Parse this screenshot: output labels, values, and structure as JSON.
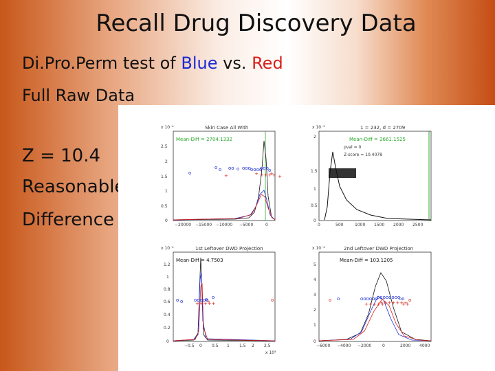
{
  "slide": {
    "title": "Recall Drug Discovery Data",
    "line1_prefix": "Di.Pro.Perm test of ",
    "line1_blue": "Blue",
    "line1_mid": " vs. ",
    "line1_red": "Red",
    "line2": "Full Raw Data",
    "line3": "Z = 10.4",
    "line4": "Reasonable",
    "line5": "Difference"
  },
  "colors": {
    "blue": "#1a2ad6",
    "red": "#d8201a",
    "green": "#2aa82a"
  },
  "plots": {
    "p1": {
      "exp": "x 10⁻⁴",
      "title": "Skin Case All With",
      "legend": "Mean-Diff = 2704.1332",
      "yticks": [
        "2.5",
        "2",
        "1.5",
        "1",
        "0.5",
        "0"
      ],
      "xticks": [
        "−20000",
        "−15000",
        "−10000",
        "−5000",
        "0"
      ]
    },
    "p2": {
      "exp": "x 10⁻³",
      "title": "1 = 232, d = 2709",
      "legend": "Mean-Diff = 2661.1525",
      "yticks": [
        "2",
        "1.5",
        "1",
        "0.5",
        "0"
      ],
      "xticks": [
        "0",
        "500",
        "1000",
        "1500",
        "2000",
        "2500"
      ],
      "note1": "pval = 0",
      "note2": "Z-score = 10.4078"
    },
    "p3": {
      "exp": "x 10⁻⁴",
      "title": "1st Leftover DWD Projection",
      "legend": "Mean-Diff = 4.7503",
      "yticks": [
        "1.2",
        "1",
        "0.8",
        "0.6",
        "0.4",
        "0.2",
        "0"
      ],
      "xticks": [
        "−0.5",
        "0",
        "0.5",
        "1",
        "1.5",
        "2",
        "2.5"
      ],
      "xexp": "x 10⁴"
    },
    "p4": {
      "exp": "x 10⁻⁴",
      "title": "2nd Leftover DWD Projection",
      "legend": "Mean-Diff = 103.1205",
      "yticks": [
        "5",
        "4",
        "3",
        "2",
        "1",
        "0"
      ],
      "xticks": [
        "−6000",
        "−4000",
        "−2000",
        "0",
        "2000",
        "4000"
      ]
    }
  }
}
